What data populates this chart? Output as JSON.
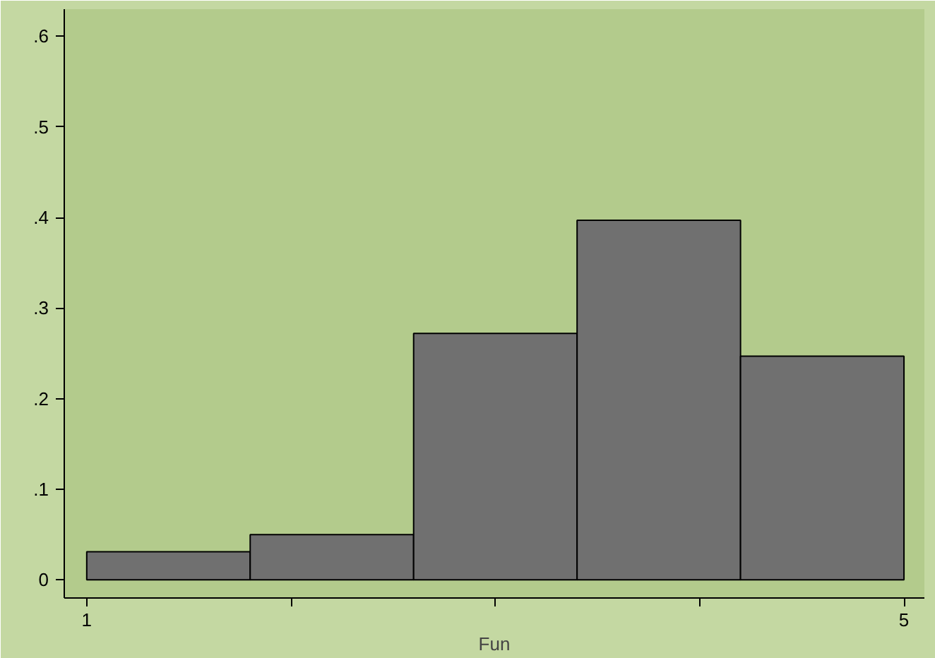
{
  "chart_data": {
    "type": "histogram",
    "xlabel": "Fun",
    "bins": [
      1,
      1.8,
      2.6,
      3.4,
      4.2,
      5.0
    ],
    "values": [
      0.031,
      0.05,
      0.272,
      0.397,
      0.247
    ],
    "color": "#707070",
    "xlim": [
      0.89,
      5.1
    ],
    "ylim": [
      -0.02,
      0.63
    ],
    "xticks": [
      1,
      {
        "value": 2,
        "label": null
      },
      {
        "value": 3,
        "label": null
      },
      {
        "value": 4,
        "label": null
      },
      5
    ],
    "yticks": [
      {
        "value": 0,
        "label": "0"
      },
      {
        "value": 0.1,
        "label": ".1"
      },
      {
        "value": 0.2,
        "label": ".2"
      },
      {
        "value": 0.3,
        "label": ".3"
      },
      {
        "value": 0.4,
        "label": ".4"
      },
      {
        "value": 0.5,
        "label": ".5"
      },
      {
        "value": 0.6,
        "label": ".6"
      }
    ],
    "grid": false
  }
}
